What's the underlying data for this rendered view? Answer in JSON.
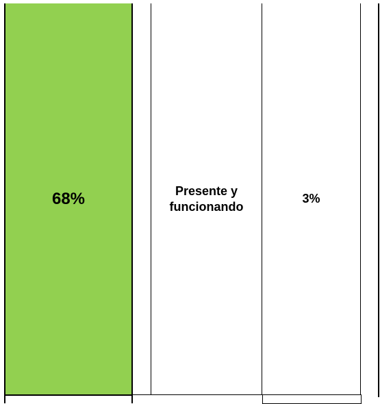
{
  "table": {
    "percent_cell": {
      "value": "68%",
      "background": "#92d050"
    },
    "status_cell": {
      "label": "Presente y funcionando"
    },
    "value_cell": {
      "value": "3%"
    }
  }
}
